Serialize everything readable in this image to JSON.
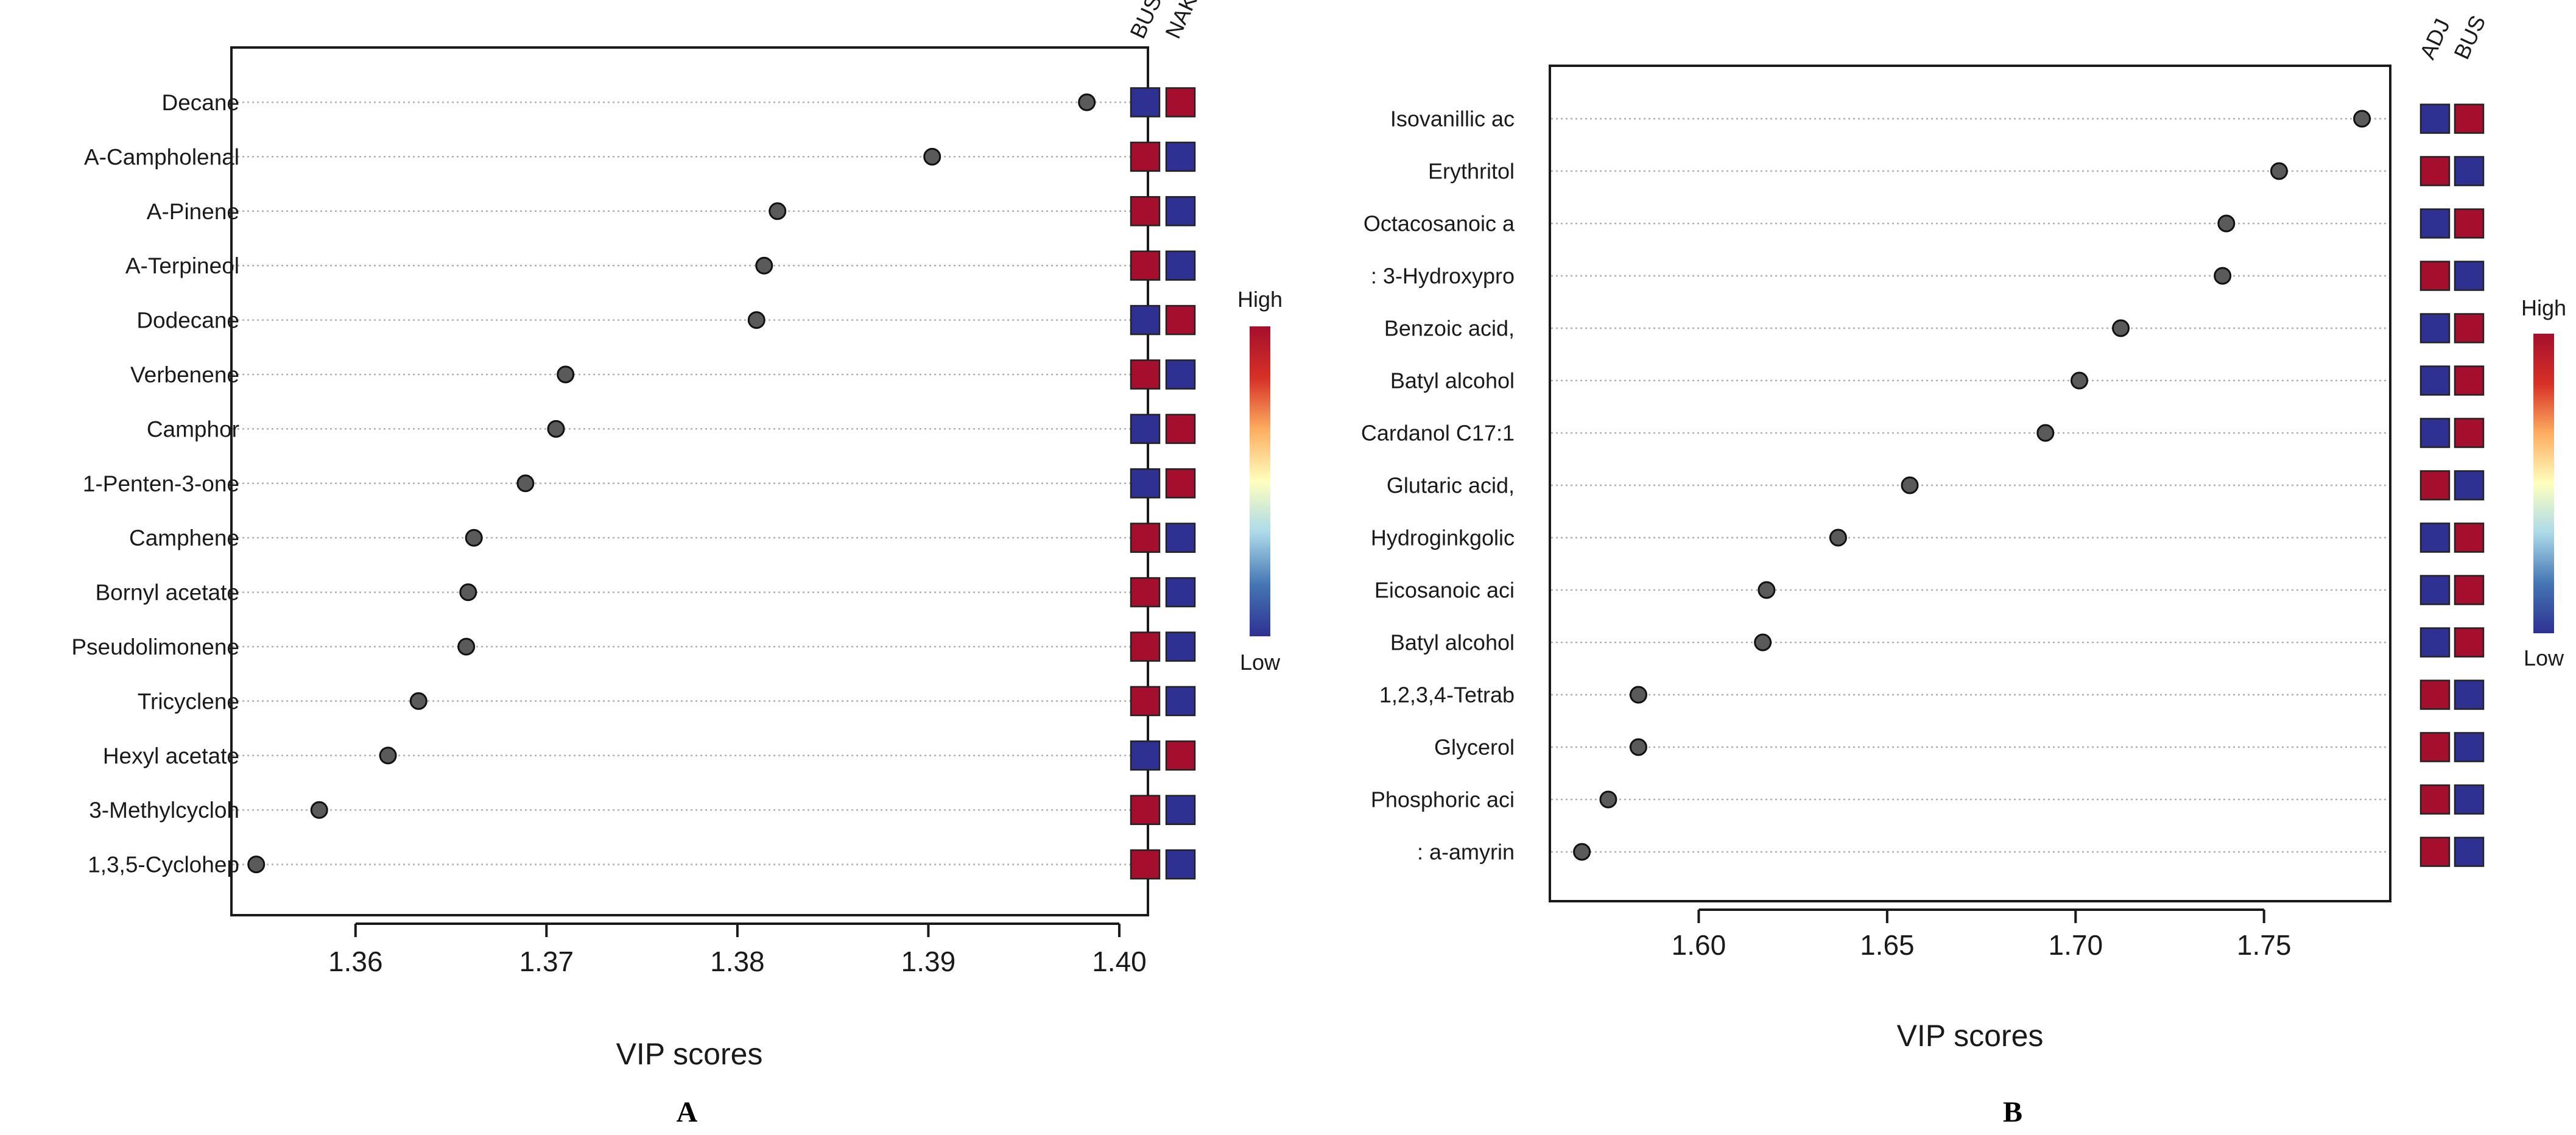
{
  "colors": {
    "high": "#a50f2d",
    "low": "#2e3192",
    "point": "#5a5a5a",
    "grid": "#b0b0b0",
    "gradient": [
      "#2e3192",
      "#4575b4",
      "#abd9e9",
      "#ffffbf",
      "#fdae61",
      "#d73027",
      "#a50f2d"
    ]
  },
  "chart_data": [
    {
      "type": "scatter",
      "panel": "A",
      "xlabel": "VIP scores",
      "xlim": [
        1.3535,
        1.4015
      ],
      "xticks": [
        "1.36",
        "1.37",
        "1.38",
        "1.39",
        "1.40"
      ],
      "groups": [
        "BUS",
        "NAK"
      ],
      "legend": {
        "high": "High",
        "low": "Low"
      },
      "items": [
        {
          "label": "Decane",
          "value": 1.3983,
          "levels": [
            "low",
            "high"
          ]
        },
        {
          "label": "A-Campholenal",
          "value": 1.3902,
          "levels": [
            "high",
            "low"
          ]
        },
        {
          "label": "A-Pinene",
          "value": 1.3821,
          "levels": [
            "high",
            "low"
          ]
        },
        {
          "label": "A-Terpineol",
          "value": 1.3814,
          "levels": [
            "high",
            "low"
          ]
        },
        {
          "label": "Dodecane",
          "value": 1.381,
          "levels": [
            "low",
            "high"
          ]
        },
        {
          "label": "Verbenene",
          "value": 1.371,
          "levels": [
            "high",
            "low"
          ]
        },
        {
          "label": "Camphor",
          "value": 1.3705,
          "levels": [
            "low",
            "high"
          ]
        },
        {
          "label": "1-Penten-3-one",
          "value": 1.3689,
          "levels": [
            "low",
            "high"
          ]
        },
        {
          "label": "Camphene",
          "value": 1.3662,
          "levels": [
            "high",
            "low"
          ]
        },
        {
          "label": "Bornyl acetate",
          "value": 1.3659,
          "levels": [
            "high",
            "low"
          ]
        },
        {
          "label": "Pseudolimonene",
          "value": 1.3658,
          "levels": [
            "high",
            "low"
          ]
        },
        {
          "label": "Tricyclene",
          "value": 1.3633,
          "levels": [
            "high",
            "low"
          ]
        },
        {
          "label": "Hexyl acetate",
          "value": 1.3617,
          "levels": [
            "low",
            "high"
          ]
        },
        {
          "label": "3-Methylcycloh",
          "value": 1.3581,
          "levels": [
            "high",
            "low"
          ]
        },
        {
          "label": "1,3,5-Cyclohep",
          "value": 1.3548,
          "levels": [
            "high",
            "low"
          ]
        }
      ]
    },
    {
      "type": "scatter",
      "panel": "B",
      "xlabel": "VIP scores",
      "xlim": [
        1.5605,
        1.7835
      ],
      "xticks": [
        "1.60",
        "1.65",
        "1.70",
        "1.75"
      ],
      "groups": [
        "ADJ",
        "BUS"
      ],
      "legend": {
        "high": "High",
        "low": "Low"
      },
      "items": [
        {
          "label": "Isovanillic ac",
          "value": 1.776,
          "levels": [
            "low",
            "high"
          ]
        },
        {
          "label": "Erythritol",
          "value": 1.754,
          "levels": [
            "high",
            "low"
          ]
        },
        {
          "label": "Octacosanoic a",
          "value": 1.74,
          "levels": [
            "low",
            "high"
          ]
        },
        {
          "label": ": 3-Hydroxypro",
          "value": 1.739,
          "levels": [
            "high",
            "low"
          ]
        },
        {
          "label": "Benzoic acid,",
          "value": 1.712,
          "levels": [
            "low",
            "high"
          ]
        },
        {
          "label": "Batyl alcohol",
          "value": 1.701,
          "levels": [
            "low",
            "high"
          ]
        },
        {
          "label": "Cardanol C17:1",
          "value": 1.692,
          "levels": [
            "low",
            "high"
          ]
        },
        {
          "label": "Glutaric acid,",
          "value": 1.656,
          "levels": [
            "high",
            "low"
          ]
        },
        {
          "label": "Hydroginkgolic",
          "value": 1.637,
          "levels": [
            "low",
            "high"
          ]
        },
        {
          "label": "Eicosanoic aci",
          "value": 1.618,
          "levels": [
            "low",
            "high"
          ]
        },
        {
          "label": "Batyl alcohol",
          "value": 1.617,
          "levels": [
            "low",
            "high"
          ]
        },
        {
          "label": "1,2,3,4-Tetrab",
          "value": 1.584,
          "levels": [
            "high",
            "low"
          ]
        },
        {
          "label": "Glycerol",
          "value": 1.584,
          "levels": [
            "high",
            "low"
          ]
        },
        {
          "label": "Phosphoric aci",
          "value": 1.576,
          "levels": [
            "high",
            "low"
          ]
        },
        {
          "label": ": a-amyrin",
          "value": 1.569,
          "levels": [
            "high",
            "low"
          ]
        }
      ]
    }
  ]
}
